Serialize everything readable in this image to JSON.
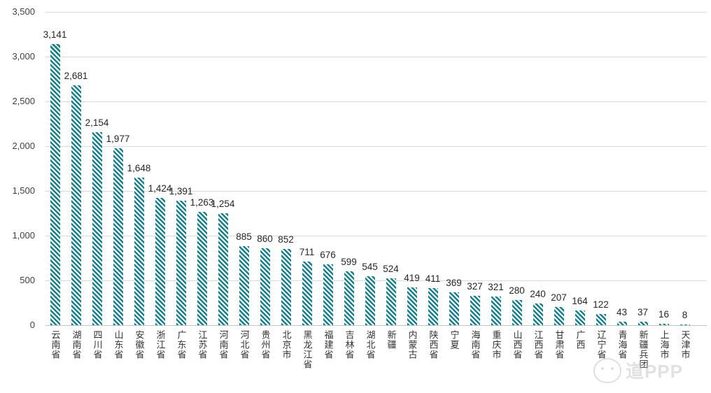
{
  "chart_data": {
    "type": "bar",
    "title": "",
    "xlabel": "",
    "ylabel": "",
    "categories": [
      "云南省",
      "湖南省",
      "四川省",
      "山东省",
      "安徽省",
      "浙江省",
      "广东省",
      "江苏省",
      "河南省",
      "河北省",
      "贵州省",
      "北京市",
      "黑龙江省",
      "福建省",
      "吉林省",
      "湖北省",
      "新疆",
      "内蒙古",
      "陕西省",
      "宁夏",
      "海南省",
      "重庆市",
      "山西省",
      "江西省",
      "甘肃省",
      "广西",
      "辽宁省",
      "青海省",
      "新疆兵团",
      "上海市",
      "天津市"
    ],
    "values": [
      3141,
      2681,
      2154,
      1977,
      1648,
      1424,
      1391,
      1263,
      1254,
      885,
      860,
      852,
      711,
      676,
      599,
      545,
      524,
      419,
      411,
      369,
      327,
      321,
      280,
      240,
      207,
      164,
      122,
      43,
      37,
      16,
      8
    ],
    "value_labels": [
      "3,141",
      "2,681",
      "2,154",
      "1,977",
      "1,648",
      "1,424",
      "1,391",
      "1,263",
      "1,254",
      "885",
      "860",
      "852",
      "711",
      "676",
      "599",
      "545",
      "524",
      "419",
      "411",
      "369",
      "327",
      "321",
      "280",
      "240",
      "207",
      "164",
      "122",
      "43",
      "37",
      "16",
      "8"
    ],
    "ylim": [
      0,
      3500
    ],
    "y_ticks": [
      0,
      500,
      1000,
      1500,
      2000,
      2500,
      3000,
      3500
    ],
    "y_tick_labels": [
      "0",
      "500",
      "1,000",
      "1,500",
      "2,000",
      "2,500",
      "3,000",
      "3,500"
    ],
    "grid": true,
    "legend": null,
    "bar_color": "#17808e",
    "bar_pattern": "downward-diagonal-stripes"
  },
  "watermark": {
    "text": "道PPP"
  }
}
